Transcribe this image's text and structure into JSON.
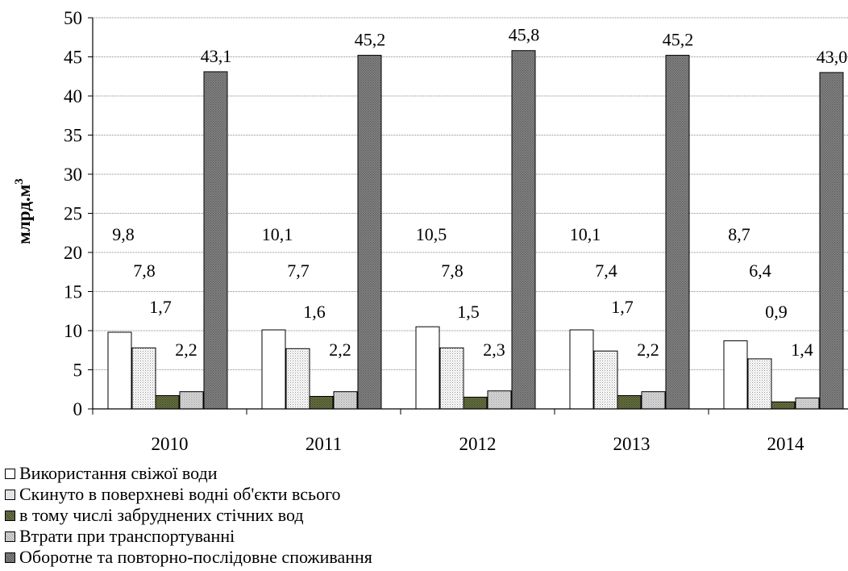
{
  "chart_data": {
    "type": "bar",
    "title": "",
    "xlabel": "",
    "ylabel": "млрд.м",
    "ylabel_superscript": "3",
    "ylim": [
      0,
      50
    ],
    "ytick_step": 5,
    "yticks": [
      "0",
      "5",
      "10",
      "15",
      "20",
      "25",
      "30",
      "35",
      "40",
      "45",
      "50"
    ],
    "grid": "horizontal-dotted",
    "legend_position": "bottom-left",
    "categories": [
      "2010",
      "2011",
      "2012",
      "2013",
      "2014"
    ],
    "series": [
      {
        "name": "Використання свіжої води",
        "values": [
          9.8,
          10.1,
          10.5,
          10.1,
          8.7
        ],
        "labels": [
          "9,8",
          "10,1",
          "10,5",
          "10,1",
          "8,7"
        ]
      },
      {
        "name": "Скинуто в поверхневі водні об'єкти всього",
        "values": [
          7.8,
          7.7,
          7.8,
          7.4,
          6.4
        ],
        "labels": [
          "7,8",
          "7,7",
          "7,8",
          "7,4",
          "6,4"
        ]
      },
      {
        "name": "в тому числі забруднених стічних вод",
        "values": [
          1.7,
          1.6,
          1.5,
          1.7,
          0.9
        ],
        "labels": [
          "1,7",
          "1,6",
          "1,5",
          "1,7",
          "0,9"
        ]
      },
      {
        "name": "Втрати при транспортуванні",
        "values": [
          2.2,
          2.2,
          2.3,
          2.2,
          1.4
        ],
        "labels": [
          "2,2",
          "2,2",
          "2,3",
          "2,2",
          "1,4"
        ]
      },
      {
        "name": "Оборотне та повторно-послідовне споживання",
        "values": [
          43.1,
          45.2,
          45.8,
          45.2,
          43.0
        ],
        "labels": [
          "43,1",
          "45,2",
          "45,8",
          "45,2",
          "43,0"
        ]
      }
    ],
    "colors": [
      "#ffffff",
      "#eeeeee",
      "#5f6a3c",
      "#d0d0d0",
      "#7a7a7a"
    ]
  }
}
